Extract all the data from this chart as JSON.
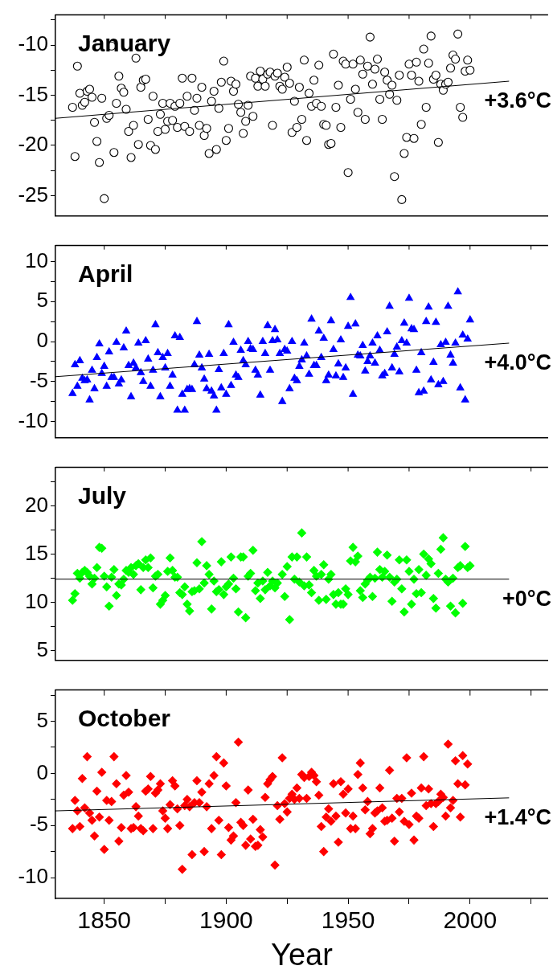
{
  "chart_data": [
    {
      "type": "scatter",
      "title": "January",
      "annotations": [
        "+3.6°C"
      ],
      "tick_labels": "y",
      "xlim": [
        1830,
        2032
      ],
      "xticks": [
        {
          "value": 1850,
          "label": null
        },
        {
          "value": 1875,
          "label": null
        },
        {
          "value": 1900,
          "label": null
        },
        {
          "value": 1925,
          "label": null
        },
        {
          "value": 1950,
          "label": null
        },
        {
          "value": 1975,
          "label": null
        },
        {
          "value": 2000,
          "label": null
        },
        {
          "value": 2025,
          "label": null
        }
      ],
      "ylim": [
        -27,
        -7
      ],
      "yticks": [
        {
          "value": -25,
          "label": "-25"
        },
        {
          "value": -22.5,
          "label": null
        },
        {
          "value": -20,
          "label": "-20"
        },
        {
          "value": -17.5,
          "label": null
        },
        {
          "value": -15,
          "label": "-15"
        },
        {
          "value": -12.5,
          "label": null
        },
        {
          "value": -10,
          "label": "-10"
        },
        {
          "value": -7.5,
          "label": null
        }
      ],
      "series": [
        {
          "type": "scatter",
          "color": "#000000",
          "marker": "circle",
          "x": [
            1837,
            1838,
            1839,
            1840,
            1841,
            1842,
            1843,
            1844,
            1845,
            1846,
            1847,
            1848,
            1849,
            1850,
            1851,
            1852,
            1853,
            1854,
            1855,
            1856,
            1857,
            1858,
            1859,
            1860,
            1861,
            1862,
            1863,
            1864,
            1865,
            1866,
            1867,
            1868,
            1869,
            1870,
            1871,
            1872,
            1873,
            1874,
            1875,
            1876,
            1877,
            1878,
            1879,
            1880,
            1881,
            1882,
            1883,
            1884,
            1885,
            1886,
            1887,
            1888,
            1889,
            1890,
            1891,
            1892,
            1893,
            1894,
            1895,
            1896,
            1897,
            1898,
            1899,
            1900,
            1901,
            1902,
            1903,
            1904,
            1905,
            1906,
            1907,
            1908,
            1909,
            1910,
            1911,
            1912,
            1913,
            1914,
            1915,
            1916,
            1917,
            1918,
            1919,
            1920,
            1921,
            1922,
            1923,
            1924,
            1925,
            1926,
            1927,
            1928,
            1929,
            1930,
            1931,
            1932,
            1933,
            1934,
            1935,
            1936,
            1937,
            1938,
            1939,
            1940,
            1941,
            1942,
            1943,
            1944,
            1945,
            1946,
            1947,
            1948,
            1949,
            1950,
            1951,
            1952,
            1953,
            1954,
            1955,
            1956,
            1957,
            1958,
            1959,
            1960,
            1961,
            1962,
            1963,
            1964,
            1965,
            1966,
            1967,
            1968,
            1969,
            1970,
            1971,
            1972,
            1973,
            1974,
            1975,
            1976,
            1977,
            1978,
            1979,
            1980,
            1981,
            1982,
            1983,
            1984,
            1985,
            1986,
            1987,
            1988,
            1989,
            1990,
            1991,
            1992,
            1993,
            1994,
            1995,
            1996,
            1997,
            1998,
            1999,
            2000
          ],
          "values": [
            -16.2,
            -21.1,
            -12.1,
            -14.8,
            -16.0,
            -15.7,
            -14.6,
            -14.4,
            -15.2,
            -17.7,
            -19.6,
            -21.7,
            -15.3,
            -25.3,
            -17.3,
            -17.0,
            -10.1,
            -20.7,
            -15.8,
            -13.1,
            -14.3,
            -14.7,
            -16.4,
            -18.6,
            -21.2,
            -18.0,
            -11.3,
            -19.9,
            -14.2,
            -13.5,
            -13.4,
            -17.4,
            -20.0,
            -15.1,
            -20.4,
            -18.6,
            -16.9,
            -15.8,
            -18.4,
            -17.6,
            -15.8,
            -17.5,
            -16.1,
            -18.2,
            -15.8,
            -13.3,
            -18.1,
            -15.1,
            -18.6,
            -13.3,
            -16.5,
            -15.3,
            -18.0,
            -14.2,
            -19.0,
            -18.3,
            -20.8,
            -15.6,
            -14.6,
            -20.4,
            -16.3,
            -13.7,
            -11.6,
            -19.5,
            -18.3,
            -13.6,
            -14.6,
            -13.9,
            -15.9,
            -16.7,
            -18.8,
            -17.6,
            -16.0,
            -13.1,
            -17.1,
            -13.3,
            -14.1,
            -12.6,
            -13.4,
            -14.1,
            -12.9,
            -12.7,
            -18.0,
            -13.1,
            -12.8,
            -14.1,
            -14.4,
            -13.2,
            -12.2,
            -13.8,
            -18.7,
            -15.6,
            -18.2,
            -14.2,
            -17.4,
            -11.5,
            -19.5,
            -14.8,
            -16.1,
            -13.5,
            -15.8,
            -12.0,
            -16.1,
            -17.9,
            -18.0,
            -19.9,
            -19.8,
            -10.9,
            -16.2,
            -14.0,
            -18.2,
            -11.6,
            -11.9,
            -22.7,
            -15.4,
            -11.9,
            -14.4,
            -16.7,
            -11.5,
            -12.9,
            -17.4,
            -12.1,
            -9.2,
            -13.9,
            -12.4,
            -11.4,
            -15.4,
            -17.4,
            -12.7,
            -13.5,
            -14.9,
            -14.0,
            -23.1,
            -15.5,
            -13.0,
            -25.4,
            -20.8,
            -19.2,
            -11.9,
            -13.0,
            -19.3,
            -11.7,
            -13.6,
            -17.9,
            -10.4,
            -16.2,
            -11.8,
            -9.1,
            -13.4,
            -13.0,
            -19.7,
            -13.9,
            -14.5,
            -13.9,
            -13.7,
            -12.3,
            -11.0,
            -11.4,
            -8.9,
            -16.2,
            -17.2,
            -12.6,
            -11.5,
            -12.5
          ]
        },
        {
          "type": "line",
          "color": "#000000",
          "marker": "none",
          "x": [
            1830,
            2016
          ],
          "values": [
            -17.3,
            -13.6
          ]
        }
      ]
    },
    {
      "type": "scatter",
      "title": "April",
      "annotations": [
        "+4.0°C"
      ],
      "tick_labels": "y",
      "xlim": [
        1830,
        2032
      ],
      "xticks": [
        {
          "value": 1850,
          "label": null
        },
        {
          "value": 1875,
          "label": null
        },
        {
          "value": 1900,
          "label": null
        },
        {
          "value": 1925,
          "label": null
        },
        {
          "value": 1950,
          "label": null
        },
        {
          "value": 1975,
          "label": null
        },
        {
          "value": 2000,
          "label": null
        },
        {
          "value": 2025,
          "label": null
        }
      ],
      "ylim": [
        -12,
        12
      ],
      "yticks": [
        {
          "value": -10,
          "label": "-10"
        },
        {
          "value": -7.5,
          "label": null
        },
        {
          "value": -5,
          "label": "-5"
        },
        {
          "value": -2.5,
          "label": null
        },
        {
          "value": 0,
          "label": "0"
        },
        {
          "value": 2.5,
          "label": null
        },
        {
          "value": 5,
          "label": "5"
        },
        {
          "value": 7.5,
          "label": null
        },
        {
          "value": 10,
          "label": "10"
        }
      ],
      "series": [
        {
          "type": "scatter",
          "color": "#0000ff",
          "marker": "triangle",
          "x": [
            1837,
            1838,
            1839,
            1840,
            1841,
            1842,
            1843,
            1844,
            1845,
            1846,
            1847,
            1848,
            1849,
            1850,
            1851,
            1852,
            1853,
            1854,
            1855,
            1856,
            1857,
            1858,
            1859,
            1860,
            1861,
            1862,
            1863,
            1864,
            1865,
            1866,
            1867,
            1868,
            1869,
            1870,
            1871,
            1872,
            1873,
            1874,
            1875,
            1876,
            1877,
            1878,
            1879,
            1880,
            1881,
            1882,
            1883,
            1884,
            1885,
            1886,
            1887,
            1888,
            1889,
            1890,
            1891,
            1892,
            1893,
            1894,
            1895,
            1896,
            1897,
            1898,
            1899,
            1900,
            1901,
            1902,
            1903,
            1904,
            1905,
            1906,
            1907,
            1908,
            1909,
            1910,
            1911,
            1912,
            1913,
            1914,
            1915,
            1916,
            1917,
            1918,
            1919,
            1920,
            1921,
            1922,
            1923,
            1924,
            1925,
            1926,
            1927,
            1928,
            1929,
            1930,
            1931,
            1932,
            1933,
            1934,
            1935,
            1936,
            1937,
            1938,
            1939,
            1940,
            1941,
            1942,
            1943,
            1944,
            1945,
            1946,
            1947,
            1948,
            1949,
            1950,
            1951,
            1952,
            1953,
            1954,
            1955,
            1956,
            1957,
            1958,
            1959,
            1960,
            1961,
            1962,
            1963,
            1964,
            1965,
            1966,
            1967,
            1968,
            1969,
            1970,
            1971,
            1972,
            1973,
            1974,
            1975,
            1976,
            1977,
            1978,
            1979,
            1980,
            1981,
            1982,
            1983,
            1984,
            1985,
            1986,
            1987,
            1988,
            1989,
            1990,
            1991,
            1992,
            1993,
            1994,
            1995,
            1996,
            1997,
            1998,
            1999,
            2000
          ],
          "values": [
            -6.5,
            -2.9,
            -5.6,
            -2.4,
            -4.6,
            -4.9,
            -4.8,
            -7.3,
            -3.6,
            -5.9,
            -2.0,
            -0.3,
            -4.0,
            -3.1,
            -5.6,
            -1.3,
            -4.5,
            -4.5,
            -0.1,
            -5.3,
            -4.8,
            -0.8,
            1.3,
            -3.0,
            -6.9,
            -2.7,
            -3.3,
            -0.2,
            -3.9,
            -5.0,
            0.1,
            -2.2,
            -5.6,
            -3.6,
            2.1,
            -1.4,
            -6.9,
            -2.0,
            -3.3,
            -1.5,
            -5.6,
            -4.2,
            0.7,
            -8.6,
            0.5,
            -6.6,
            -8.6,
            -6.0,
            -5.9,
            -6.0,
            -2.9,
            2.5,
            -1.7,
            -3.3,
            -4.7,
            -5.9,
            -1.6,
            -6.2,
            -6.8,
            -8.6,
            -3.5,
            -5.8,
            -1.5,
            -6.6,
            2.1,
            -5.5,
            -0.1,
            -4.2,
            -4.5,
            -1.1,
            -2.4,
            -2.9,
            0.0,
            -0.9,
            -1.0,
            -3.6,
            -4.2,
            -6.7,
            0.0,
            -1.5,
            2.0,
            -3.6,
            0.1,
            1.5,
            0.2,
            -1.5,
            -7.5,
            -1.0,
            -1.2,
            -5.9,
            0.0,
            -4.6,
            -4.9,
            -3.1,
            -2.3,
            -0.2,
            -1.8,
            -4.1,
            2.8,
            -3.0,
            -3.0,
            1.3,
            -2.0,
            0.4,
            -4.9,
            -4.2,
            2.6,
            -1.0,
            -4.3,
            -2.8,
            0.2,
            -4.5,
            -3.3,
            1.9,
            5.5,
            -6.6,
            2.2,
            -1.7,
            -1.8,
            -0.5,
            -3.7,
            -2.5,
            -1.8,
            -0.2,
            -2.7,
            0.7,
            -1.1,
            -4.3,
            -4.0,
            1.2,
            4.4,
            -3.3,
            -1.6,
            -0.7,
            -3.8,
            0.1,
            2.3,
            -0.2,
            5.4,
            1.6,
            1.5,
            -3.6,
            -6.4,
            -1.4,
            -6.2,
            2.5,
            4.3,
            -4.8,
            -2.6,
            2.4,
            -5.4,
            -0.4,
            -5.0,
            -0.1,
            4.4,
            -1.7,
            -2.7,
            -0.2,
            6.2,
            -5.8,
            0.8,
            -7.3,
            0.3,
            2.7
          ]
        },
        {
          "type": "line",
          "color": "#000000",
          "marker": "none",
          "x": [
            1830,
            2016
          ],
          "values": [
            -4.4,
            -0.2
          ]
        }
      ]
    },
    {
      "type": "scatter",
      "title": "July",
      "annotations": [
        "+0°C"
      ],
      "tick_labels": "y",
      "xlim": [
        1830,
        2032
      ],
      "xticks": [
        {
          "value": 1850,
          "label": null
        },
        {
          "value": 1875,
          "label": null
        },
        {
          "value": 1900,
          "label": null
        },
        {
          "value": 1925,
          "label": null
        },
        {
          "value": 1950,
          "label": null
        },
        {
          "value": 1975,
          "label": null
        },
        {
          "value": 2000,
          "label": null
        },
        {
          "value": 2025,
          "label": null
        }
      ],
      "ylim": [
        4,
        24
      ],
      "yticks": [
        {
          "value": 5,
          "label": "5"
        },
        {
          "value": 7.5,
          "label": null
        },
        {
          "value": 10,
          "label": "10"
        },
        {
          "value": 12.5,
          "label": null
        },
        {
          "value": 15,
          "label": "15"
        },
        {
          "value": 17.5,
          "label": null
        },
        {
          "value": 20,
          "label": "20"
        },
        {
          "value": 22.5,
          "label": null
        }
      ],
      "series": [
        {
          "type": "scatter",
          "color": "#00ff00",
          "marker": "diamond",
          "x": [
            1837,
            1838,
            1839,
            1840,
            1841,
            1842,
            1843,
            1844,
            1845,
            1846,
            1847,
            1848,
            1849,
            1850,
            1851,
            1852,
            1853,
            1854,
            1855,
            1856,
            1857,
            1858,
            1859,
            1860,
            1861,
            1862,
            1863,
            1864,
            1865,
            1866,
            1867,
            1868,
            1869,
            1870,
            1871,
            1872,
            1873,
            1874,
            1875,
            1876,
            1877,
            1878,
            1879,
            1880,
            1881,
            1882,
            1883,
            1884,
            1885,
            1886,
            1887,
            1888,
            1889,
            1890,
            1891,
            1892,
            1893,
            1894,
            1895,
            1896,
            1897,
            1898,
            1899,
            1900,
            1901,
            1902,
            1903,
            1904,
            1905,
            1906,
            1907,
            1908,
            1909,
            1910,
            1911,
            1912,
            1913,
            1914,
            1915,
            1916,
            1917,
            1918,
            1919,
            1920,
            1921,
            1923,
            1924,
            1925,
            1926,
            1927,
            1928,
            1929,
            1930,
            1931,
            1932,
            1933,
            1934,
            1935,
            1936,
            1937,
            1938,
            1939,
            1940,
            1941,
            1942,
            1943,
            1944,
            1945,
            1946,
            1947,
            1948,
            1949,
            1950,
            1951,
            1952,
            1953,
            1954,
            1955,
            1956,
            1957,
            1958,
            1959,
            1960,
            1961,
            1962,
            1963,
            1964,
            1965,
            1966,
            1967,
            1968,
            1969,
            1970,
            1971,
            1972,
            1973,
            1974,
            1975,
            1976,
            1977,
            1978,
            1979,
            1980,
            1981,
            1982,
            1983,
            1984,
            1985,
            1986,
            1987,
            1988,
            1989,
            1990,
            1991,
            1992,
            1993,
            1994,
            1995,
            1996,
            1997,
            1998,
            1999,
            2000
          ],
          "values": [
            10.2,
            10.9,
            13.0,
            12.5,
            13.1,
            13.3,
            13.1,
            12.7,
            11.9,
            12.5,
            13.6,
            15.7,
            15.6,
            12.7,
            11.6,
            9.6,
            12.6,
            13.4,
            10.7,
            11.9,
            11.8,
            12.4,
            13.3,
            13.1,
            13.6,
            12.9,
            13.8,
            14.0,
            11.3,
            13.6,
            14.4,
            13.6,
            14.6,
            11.5,
            12.7,
            12.9,
            9.8,
            10.2,
            10.7,
            13.2,
            14.6,
            13.3,
            12.6,
            12.6,
            11.0,
            10.8,
            11.6,
            9.8,
            9.1,
            11.1,
            11.2,
            14.1,
            11.4,
            16.3,
            12.0,
            13.8,
            12.9,
            9.3,
            12.2,
            11.1,
            11.3,
            14.2,
            10.8,
            11.6,
            11.9,
            14.7,
            12.5,
            11.4,
            9.0,
            14.7,
            14.7,
            8.4,
            12.7,
            13.0,
            15.4,
            11.2,
            12.0,
            10.4,
            12.2,
            11.3,
            13.1,
            11.7,
            12.2,
            11.5,
            12.0,
            12.9,
            10.6,
            13.7,
            8.2,
            14.7,
            12.4,
            14.7,
            12.1,
            17.2,
            11.7,
            14.7,
            11.8,
            11.0,
            13.3,
            12.7,
            10.2,
            12.9,
            13.9,
            10.3,
            12.4,
            12.9,
            10.8,
            9.8,
            11.0,
            9.8,
            9.8,
            11.4,
            10.8,
            14.3,
            15.7,
            14.2,
            14.8,
            11.2,
            10.5,
            11.9,
            12.3,
            12.6,
            10.6,
            12.5,
            15.2,
            13.4,
            12.6,
            13.2,
            14.9,
            12.6,
            10.1,
            12.1,
            12.4,
            14.4,
            11.4,
            9.0,
            14.4,
            13.2,
            9.8,
            12.4,
            10.9,
            13.4,
            11.0,
            15.0,
            12.8,
            14.5,
            14.0,
            10.4,
            9.4,
            13.0,
            15.5,
            16.7,
            12.4,
            12.1,
            9.6,
            12.5,
            8.9,
            13.6,
            13.8,
            9.9,
            15.8,
            13.6,
            13.8
          ]
        },
        {
          "type": "line",
          "color": "#000000",
          "marker": "none",
          "x": [
            1830,
            2016
          ],
          "values": [
            12.4,
            12.4
          ]
        }
      ]
    },
    {
      "type": "scatter",
      "title": "October",
      "xlabel": "Year",
      "annotations": [
        "+1.4°C"
      ],
      "xlim": [
        1830,
        2032
      ],
      "xticks": [
        {
          "value": 1850,
          "label": "1850"
        },
        {
          "value": 1875,
          "label": null
        },
        {
          "value": 1900,
          "label": "1900"
        },
        {
          "value": 1925,
          "label": null
        },
        {
          "value": 1950,
          "label": "1950"
        },
        {
          "value": 1975,
          "label": null
        },
        {
          "value": 2000,
          "label": "2000"
        },
        {
          "value": 2025,
          "label": null
        }
      ],
      "ylim": [
        -12,
        8
      ],
      "yticks": [
        {
          "value": -10,
          "label": "-10"
        },
        {
          "value": -7.5,
          "label": null
        },
        {
          "value": -5,
          "label": "-5"
        },
        {
          "value": -2.5,
          "label": null
        },
        {
          "value": 0,
          "label": "0"
        },
        {
          "value": 2.5,
          "label": null
        },
        {
          "value": 5,
          "label": "5"
        },
        {
          "value": 7.5,
          "label": null
        }
      ],
      "series": [
        {
          "type": "scatter",
          "color": "#ff0000",
          "marker": "diamond",
          "x": [
            1837,
            1838,
            1839,
            1840,
            1841,
            1842,
            1843,
            1844,
            1845,
            1846,
            1847,
            1848,
            1849,
            1850,
            1851,
            1852,
            1853,
            1854,
            1855,
            1856,
            1857,
            1858,
            1859,
            1860,
            1861,
            1862,
            1863,
            1864,
            1865,
            1866,
            1867,
            1868,
            1869,
            1870,
            1871,
            1872,
            1873,
            1874,
            1875,
            1876,
            1877,
            1878,
            1879,
            1880,
            1881,
            1882,
            1883,
            1884,
            1885,
            1886,
            1887,
            1888,
            1889,
            1890,
            1891,
            1892,
            1893,
            1894,
            1895,
            1896,
            1897,
            1898,
            1899,
            1900,
            1901,
            1902,
            1903,
            1904,
            1905,
            1906,
            1907,
            1908,
            1909,
            1910,
            1911,
            1912,
            1913,
            1914,
            1915,
            1916,
            1917,
            1918,
            1919,
            1920,
            1921,
            1922,
            1923,
            1924,
            1925,
            1926,
            1927,
            1928,
            1929,
            1930,
            1931,
            1932,
            1933,
            1934,
            1935,
            1936,
            1937,
            1938,
            1939,
            1940,
            1941,
            1942,
            1943,
            1944,
            1945,
            1946,
            1947,
            1948,
            1949,
            1950,
            1951,
            1952,
            1953,
            1954,
            1955,
            1956,
            1957,
            1958,
            1959,
            1960,
            1961,
            1962,
            1963,
            1964,
            1965,
            1966,
            1967,
            1968,
            1969,
            1970,
            1971,
            1972,
            1973,
            1974,
            1975,
            1976,
            1977,
            1978,
            1979,
            1980,
            1981,
            1982,
            1983,
            1984,
            1985,
            1986,
            1987,
            1988,
            1989,
            1990,
            1991,
            1992,
            1993,
            1994,
            1995,
            1996,
            1997,
            1998,
            1999
          ],
          "values": [
            -5.3,
            -2.6,
            -3.6,
            -5.1,
            -0.5,
            -3.3,
            1.6,
            -3.8,
            -4.5,
            -6.0,
            -1.7,
            -4.2,
            0.1,
            -7.3,
            -2.6,
            -4.5,
            -2.7,
            1.6,
            -1.0,
            -6.5,
            -5.2,
            -2.1,
            -0.2,
            -1.8,
            -5.3,
            -5.2,
            -3.2,
            -4.1,
            -5.3,
            -5.5,
            -1.7,
            -1.5,
            -0.3,
            -5.3,
            -1.9,
            -1.6,
            -1.0,
            -3.6,
            -4.3,
            -5.3,
            -3.0,
            -0.7,
            -1.2,
            -3.4,
            -5.0,
            -9.2,
            -3.1,
            -2.5,
            -3.2,
            -7.8,
            -2.8,
            -0.7,
            -2.8,
            -1.8,
            -7.5,
            -3.2,
            -1.0,
            -5.3,
            -0.2,
            1.6,
            -4.5,
            -7.8,
            1.0,
            -1.2,
            -5.2,
            -6.4,
            -6.0,
            -2.8,
            3.0,
            -4.7,
            -5.0,
            -6.9,
            -1.6,
            -6.3,
            -4.4,
            -7.0,
            -6.9,
            -5.4,
            -6.1,
            -2.3,
            -1.0,
            -0.6,
            -0.3,
            -8.8,
            -3.1,
            -4.4,
            1.5,
            -2.9,
            -3.7,
            -2.4,
            -2.0,
            -2.5,
            -1.4,
            -2.4,
            -0.1,
            -0.4,
            -2.4,
            -0.3,
            0.1,
            -0.2,
            -0.8,
            -2.1,
            -5.1,
            -7.5,
            -4.2,
            -3.4,
            -4.6,
            -1.0,
            -4.1,
            -6.6,
            -0.8,
            -2.0,
            -3.8,
            -1.5,
            -5.3,
            -4.1,
            -5.3,
            -0.1,
            1.0,
            -1.4,
            -3.5,
            -2.7,
            -5.8,
            -5.3,
            -3.8,
            -3.6,
            -1.4,
            -3.3,
            -4.6,
            -4.5,
            0.3,
            -4.3,
            -6.5,
            -2.4,
            -3.7,
            -2.4,
            -4.6,
            1.5,
            -4.9,
            -1.9,
            -6.4,
            -4.1,
            -4.3,
            -1.4,
            1.6,
            -3.1,
            -1.5,
            -2.9,
            -5.1,
            -2.9,
            -2.7,
            -2.0,
            -2.3,
            -4.1,
            2.8,
            -3.3,
            -2.6,
            1.2,
            -1.0,
            -4.2,
            1.7,
            -1.1,
            0.9
          ]
        },
        {
          "type": "line",
          "color": "#000000",
          "marker": "none",
          "x": [
            1830,
            2016
          ],
          "values": [
            -3.6,
            -2.35
          ]
        }
      ]
    }
  ]
}
